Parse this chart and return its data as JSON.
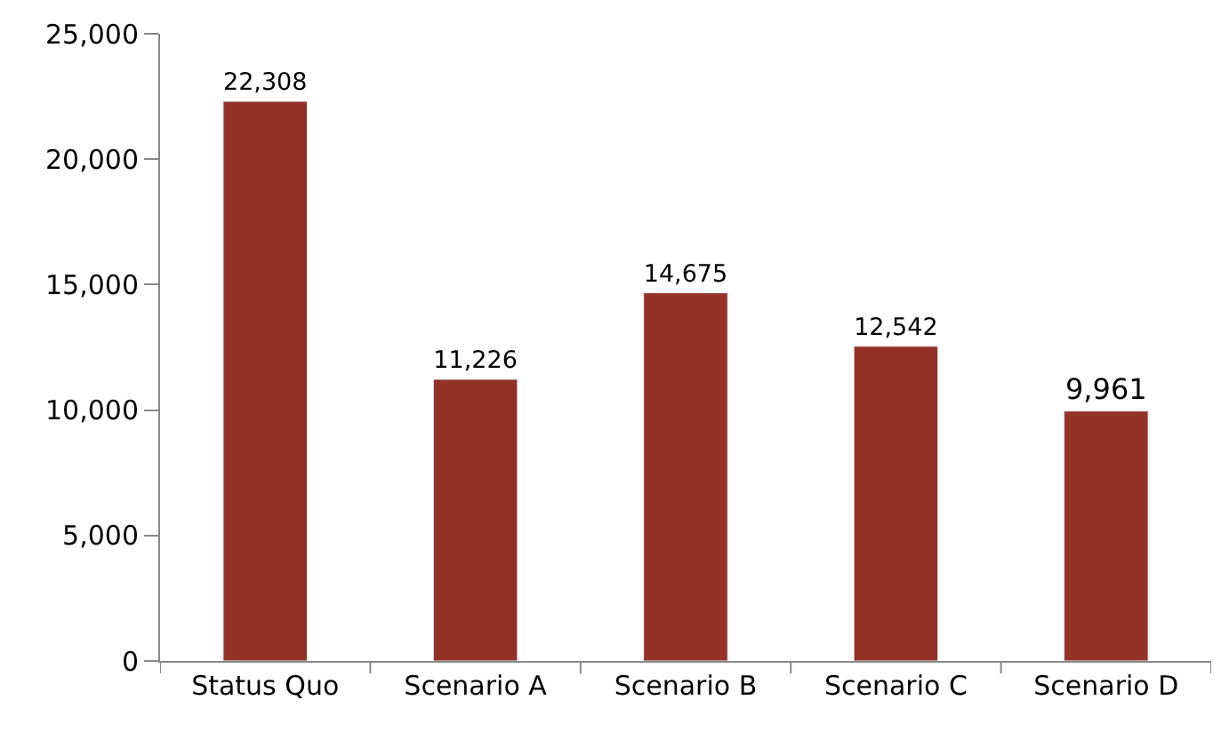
{
  "chart_data": {
    "type": "bar",
    "categories": [
      "Status Quo",
      "Scenario A",
      "Scenario B",
      "Scenario C",
      "Scenario D"
    ],
    "values": [
      22308,
      11226,
      14675,
      12542,
      9961
    ],
    "value_labels": [
      "22,308",
      "11,226",
      "14,675",
      "12,542",
      "9,961"
    ],
    "color": "#943228",
    "ylim": [
      0,
      25000
    ],
    "yticks": [
      0,
      {
        "value": 5000,
        "label": "5,000"
      },
      {
        "value": 10000,
        "label": "10,000"
      },
      {
        "value": 15000,
        "label": "15,000"
      },
      {
        "value": 20000,
        "label": "20,000"
      },
      {
        "value": 25000,
        "label": "25,000"
      }
    ]
  }
}
